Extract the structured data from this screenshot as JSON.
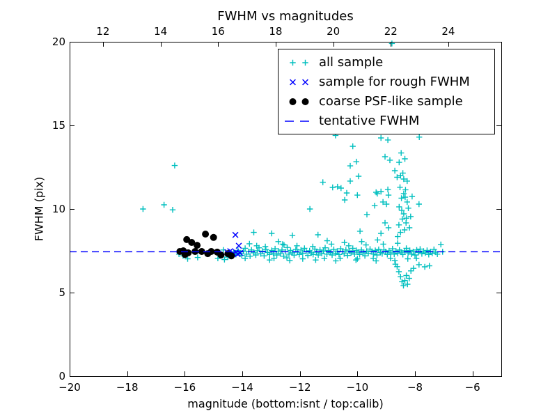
{
  "title": "FWHM vs magnitudes",
  "axes": {
    "xlabel": "magnitude (bottom:isnt / top:calib)",
    "ylabel": "FWHM (pix)",
    "bottom_ticks": [
      {
        "value": -20,
        "label": "−20"
      },
      {
        "value": -18,
        "label": "−18"
      },
      {
        "value": -16,
        "label": "−16"
      },
      {
        "value": -14,
        "label": "−14"
      },
      {
        "value": -12,
        "label": "−12"
      },
      {
        "value": -10,
        "label": "−10"
      },
      {
        "value": -8,
        "label": "−8"
      },
      {
        "value": -6,
        "label": "−6"
      }
    ],
    "top_ticks": [
      {
        "value": 12,
        "label": "12"
      },
      {
        "value": 14,
        "label": "14"
      },
      {
        "value": 16,
        "label": "16"
      },
      {
        "value": 18,
        "label": "18"
      },
      {
        "value": 20,
        "label": "20"
      },
      {
        "value": 22,
        "label": "22"
      },
      {
        "value": 24,
        "label": "24"
      }
    ],
    "left_ticks": [
      {
        "value": 0,
        "label": "0"
      },
      {
        "value": 5,
        "label": "5"
      },
      {
        "value": 10,
        "label": "10"
      },
      {
        "value": 15,
        "label": "15"
      },
      {
        "value": 20,
        "label": "20"
      }
    ]
  },
  "legend": {
    "items": [
      {
        "label": "all sample",
        "marker": "plus",
        "color": "#00bfbf"
      },
      {
        "label": "sample for rough FWHM",
        "marker": "x",
        "color": "#0000ff"
      },
      {
        "label": "coarse PSF-like sample",
        "marker": "dot",
        "color": "#000000"
      },
      {
        "label": "tentative FWHM",
        "marker": "dashed-line",
        "color": "#0000ff"
      }
    ]
  },
  "chart_data": {
    "type": "scatter",
    "title": "FWHM vs magnitudes",
    "xlabel": "magnitude (bottom:isnt / top:calib)",
    "ylabel": "FWHM (pix)",
    "xlim": [
      -20,
      -5
    ],
    "ylim": [
      0,
      20
    ],
    "grid": false,
    "legend_position": "upper right inside",
    "top_axis": {
      "tick_values": [
        12,
        14,
        16,
        18,
        20,
        22,
        24
      ],
      "offset_from_bottom_axis": 30.84,
      "relation": "calib = isnt + 30.84"
    },
    "tentative_fwhm": 7.44,
    "series": [
      {
        "name": "all sample",
        "marker": "+",
        "color": "#00bfbf",
        "points": [
          [
            -17.45,
            10.0
          ],
          [
            -16.72,
            10.25
          ],
          [
            -16.42,
            9.95
          ],
          [
            -16.35,
            12.6
          ],
          [
            -16.2,
            7.3
          ],
          [
            -16.06,
            7.2
          ],
          [
            -15.9,
            7.02
          ],
          [
            -15.55,
            7.1
          ],
          [
            -14.85,
            7.05
          ],
          [
            -14.62,
            6.98
          ],
          [
            -14.66,
            7.55
          ],
          [
            -14.5,
            7.12
          ],
          [
            -14.3,
            7.42
          ],
          [
            -14.22,
            7.28
          ],
          [
            -14.15,
            7.52
          ],
          [
            -14.08,
            7.35
          ],
          [
            -14.02,
            7.22
          ],
          [
            -13.96,
            7.48
          ],
          [
            -13.9,
            7.65
          ],
          [
            -13.85,
            7.3
          ],
          [
            -13.78,
            7.45
          ],
          [
            -13.73,
            7.18
          ],
          [
            -13.68,
            7.55
          ],
          [
            -13.6,
            8.6
          ],
          [
            -13.6,
            7.38
          ],
          [
            -13.53,
            7.25
          ],
          [
            -13.48,
            7.5
          ],
          [
            -13.42,
            7.68
          ],
          [
            -13.36,
            7.32
          ],
          [
            -13.3,
            7.48
          ],
          [
            -13.24,
            7.2
          ],
          [
            -13.18,
            7.58
          ],
          [
            -13.12,
            7.4
          ],
          [
            -13.05,
            7.28
          ],
          [
            -12.98,
            8.54
          ],
          [
            -12.98,
            7.52
          ],
          [
            -12.92,
            7.36
          ],
          [
            -12.86,
            7.62
          ],
          [
            -12.8,
            7.25
          ],
          [
            -12.74,
            7.48
          ],
          [
            -12.68,
            7.33
          ],
          [
            -12.62,
            7.55
          ],
          [
            -12.56,
            7.18
          ],
          [
            -12.5,
            7.45
          ],
          [
            -12.44,
            7.7
          ],
          [
            -12.38,
            7.3
          ],
          [
            -12.32,
            7.52
          ],
          [
            -12.26,
            8.42
          ],
          [
            -12.26,
            7.38
          ],
          [
            -12.2,
            7.24
          ],
          [
            -12.14,
            7.58
          ],
          [
            -12.08,
            7.42
          ],
          [
            -12.02,
            7.28
          ],
          [
            -11.96,
            7.55
          ],
          [
            -11.9,
            7.35
          ],
          [
            -11.84,
            7.65
          ],
          [
            -11.78,
            7.45
          ],
          [
            -11.72,
            7.22
          ],
          [
            -11.66,
            7.5
          ],
          [
            -11.6,
            7.38
          ],
          [
            -11.54,
            7.28
          ],
          [
            -11.48,
            7.6
          ],
          [
            -11.42,
            7.42
          ],
          [
            -11.37,
            8.46
          ],
          [
            -11.36,
            7.25
          ],
          [
            -11.3,
            7.55
          ],
          [
            -11.24,
            7.35
          ],
          [
            -11.18,
            7.48
          ],
          [
            -11.12,
            7.68
          ],
          [
            -11.06,
            7.3
          ],
          [
            -11.0,
            7.52
          ],
          [
            -10.94,
            7.4
          ],
          [
            -10.88,
            7.25
          ],
          [
            -10.82,
            7.58
          ],
          [
            -10.76,
            7.35
          ],
          [
            -10.7,
            7.48
          ],
          [
            -10.64,
            7.28
          ],
          [
            -10.58,
            7.62
          ],
          [
            -10.52,
            7.45
          ],
          [
            -10.46,
            7.32
          ],
          [
            -10.4,
            7.55
          ],
          [
            -10.34,
            7.22
          ],
          [
            -10.28,
            7.48
          ],
          [
            -10.22,
            7.38
          ],
          [
            -10.16,
            7.65
          ],
          [
            -10.1,
            7.3
          ],
          [
            -10.04,
            7.52
          ],
          [
            -9.98,
            7.42
          ],
          [
            -9.92,
            7.28
          ],
          [
            -9.86,
            7.55
          ],
          [
            -9.8,
            7.38
          ],
          [
            -9.74,
            7.2
          ],
          [
            -9.68,
            7.48
          ],
          [
            -9.62,
            7.35
          ],
          [
            -9.56,
            7.6
          ],
          [
            -9.5,
            7.45
          ],
          [
            -9.44,
            7.3
          ],
          [
            -9.38,
            7.52
          ],
          [
            -9.32,
            7.25
          ],
          [
            -9.26,
            7.58
          ],
          [
            -9.2,
            7.4
          ],
          [
            -9.14,
            7.32
          ],
          [
            -9.08,
            7.55
          ],
          [
            -9.02,
            7.45
          ],
          [
            -8.96,
            7.28
          ],
          [
            -8.9,
            7.5
          ],
          [
            -8.84,
            7.38
          ],
          [
            -8.78,
            7.62
          ],
          [
            -8.72,
            7.3
          ],
          [
            -8.66,
            7.48
          ],
          [
            -8.6,
            7.35
          ],
          [
            -8.54,
            7.55
          ],
          [
            -8.48,
            7.42
          ],
          [
            -8.42,
            7.28
          ],
          [
            -8.36,
            7.5
          ],
          [
            -8.3,
            7.65
          ],
          [
            -8.24,
            7.38
          ],
          [
            -8.18,
            7.52
          ],
          [
            -8.12,
            7.3
          ],
          [
            -8.06,
            7.45
          ],
          [
            -8.0,
            7.25
          ],
          [
            -7.94,
            7.55
          ],
          [
            -7.88,
            7.4
          ],
          [
            -7.82,
            7.6
          ],
          [
            -7.76,
            7.32
          ],
          [
            -7.7,
            7.48
          ],
          [
            -7.64,
            7.38
          ],
          [
            -7.58,
            7.52
          ],
          [
            -7.52,
            7.28
          ],
          [
            -7.46,
            7.45
          ],
          [
            -7.4,
            7.35
          ],
          [
            -7.34,
            7.58
          ],
          [
            -7.28,
            7.42
          ],
          [
            -7.22,
            7.3
          ],
          [
            -7.1,
            7.88
          ],
          [
            -7.04,
            7.44
          ],
          [
            -13.9,
            7.05
          ],
          [
            -13.5,
            7.8
          ],
          [
            -13.2,
            7.75
          ],
          [
            -12.9,
            7.05
          ],
          [
            -12.6,
            7.9
          ],
          [
            -12.45,
            7.08
          ],
          [
            -12.1,
            7.8
          ],
          [
            -11.9,
            7.02
          ],
          [
            -11.55,
            7.75
          ],
          [
            -11.15,
            7.05
          ],
          [
            -10.9,
            7.9
          ],
          [
            -10.6,
            7.05
          ],
          [
            -10.3,
            7.8
          ],
          [
            -10.0,
            7.02
          ],
          [
            -9.7,
            7.85
          ],
          [
            -9.45,
            7.05
          ],
          [
            -9.1,
            7.9
          ],
          [
            -8.85,
            7.05
          ],
          [
            -8.6,
            7.95
          ],
          [
            -8.25,
            7.02
          ],
          [
            -7.95,
            7.05
          ],
          [
            -12.75,
            8.05
          ],
          [
            -11.05,
            8.1
          ],
          [
            -10.45,
            8.0
          ],
          [
            -9.85,
            8.05
          ],
          [
            -9.3,
            8.15
          ],
          [
            -13.05,
            6.95
          ],
          [
            -12.35,
            6.92
          ],
          [
            -11.45,
            6.95
          ],
          [
            -10.75,
            6.9
          ],
          [
            -10.05,
            6.95
          ],
          [
            -9.35,
            6.9
          ],
          [
            -8.7,
            6.92
          ],
          [
            -13.75,
            7.92
          ],
          [
            -12.55,
            7.85
          ],
          [
            -10.76,
            14.4
          ],
          [
            -9.18,
            14.25
          ],
          [
            -8.94,
            14.13
          ],
          [
            -7.85,
            14.3
          ],
          [
            -10.16,
            13.75
          ],
          [
            -10.04,
            12.83
          ],
          [
            -10.25,
            12.58
          ],
          [
            -9.04,
            13.13
          ],
          [
            -8.87,
            12.92
          ],
          [
            -8.7,
            12.29
          ],
          [
            -8.55,
            12.79
          ],
          [
            -8.5,
            12.0
          ],
          [
            -8.39,
            11.79
          ],
          [
            -8.27,
            11.67
          ],
          [
            -9.96,
            11.96
          ],
          [
            -10.25,
            11.67
          ],
          [
            -10.69,
            11.33
          ],
          [
            -10.57,
            11.25
          ],
          [
            -10.86,
            11.29
          ],
          [
            -11.2,
            11.6
          ],
          [
            -10.37,
            10.96
          ],
          [
            -10.44,
            10.54
          ],
          [
            -10.0,
            10.83
          ],
          [
            -9.35,
            11.0
          ],
          [
            -9.31,
            10.92
          ],
          [
            -9.18,
            11.04
          ],
          [
            -8.94,
            11.17
          ],
          [
            -8.92,
            10.83
          ],
          [
            -9.11,
            10.42
          ],
          [
            -8.99,
            10.29
          ],
          [
            -8.39,
            10.92
          ],
          [
            -8.34,
            10.71
          ],
          [
            -8.27,
            10.42
          ],
          [
            -7.86,
            10.29
          ],
          [
            -9.67,
            9.67
          ],
          [
            -9.4,
            10.2
          ],
          [
            -9.04,
            9.17
          ],
          [
            -8.92,
            8.88
          ],
          [
            -8.55,
            10.13
          ],
          [
            -8.46,
            9.92
          ],
          [
            -8.39,
            9.71
          ],
          [
            -8.31,
            9.17
          ],
          [
            -8.19,
            8.88
          ],
          [
            -9.91,
            8.67
          ],
          [
            -9.18,
            8.54
          ],
          [
            -11.65,
            10.0
          ],
          [
            -8.6,
            8.35
          ],
          [
            -8.5,
            8.6
          ],
          [
            -8.44,
            9.4
          ],
          [
            -8.36,
            8.75
          ],
          [
            -8.3,
            9.45
          ],
          [
            -8.52,
            11.3
          ],
          [
            -8.42,
            12.15
          ],
          [
            -8.33,
            11.15
          ],
          [
            -8.47,
            10.65
          ],
          [
            -8.23,
            10.05
          ],
          [
            -8.15,
            9.55
          ],
          [
            -8.1,
            10.75
          ],
          [
            -8.56,
            9.05
          ],
          [
            -8.62,
            11.9
          ],
          [
            -8.48,
            13.35
          ],
          [
            -8.35,
            13.0
          ],
          [
            -8.62,
            6.55
          ],
          [
            -8.56,
            6.25
          ],
          [
            -8.5,
            5.95
          ],
          [
            -8.45,
            5.65
          ],
          [
            -8.4,
            5.42
          ],
          [
            -8.35,
            5.72
          ],
          [
            -8.3,
            6.02
          ],
          [
            -8.26,
            5.5
          ],
          [
            -8.2,
            5.85
          ],
          [
            -8.14,
            6.3
          ],
          [
            -8.05,
            6.45
          ],
          [
            -7.86,
            6.67
          ],
          [
            -7.66,
            6.54
          ],
          [
            -7.5,
            6.6
          ],
          [
            -8.68,
            6.7
          ],
          [
            -8.8,
            19.9
          ]
        ]
      },
      {
        "name": "sample for rough FWHM",
        "marker": "x",
        "color": "#0000ff",
        "points": [
          [
            -14.24,
            8.45
          ],
          [
            -14.12,
            7.8
          ],
          [
            -14.52,
            7.42
          ],
          [
            -14.42,
            7.48
          ],
          [
            -14.32,
            7.35
          ],
          [
            -14.22,
            7.42
          ],
          [
            -14.16,
            7.3
          ],
          [
            -14.08,
            7.38
          ]
        ]
      },
      {
        "name": "coarse PSF-like sample",
        "marker": "circle",
        "color": "#000000",
        "points": [
          [
            -15.28,
            8.5
          ],
          [
            -15.0,
            8.3
          ],
          [
            -15.93,
            8.17
          ],
          [
            -15.76,
            8.0
          ],
          [
            -15.57,
            7.83
          ],
          [
            -16.05,
            7.5
          ],
          [
            -16.17,
            7.46
          ],
          [
            -15.88,
            7.38
          ],
          [
            -15.64,
            7.46
          ],
          [
            -15.41,
            7.46
          ],
          [
            -15.2,
            7.33
          ],
          [
            -15.08,
            7.46
          ],
          [
            -14.87,
            7.42
          ],
          [
            -14.74,
            7.25
          ],
          [
            -14.5,
            7.33
          ],
          [
            -14.38,
            7.2
          ],
          [
            -15.99,
            7.28
          ]
        ]
      },
      {
        "name": "tentative FWHM",
        "marker": "none",
        "line_style": "dashed",
        "color": "#0000ff",
        "hline_y": 7.44
      }
    ]
  }
}
